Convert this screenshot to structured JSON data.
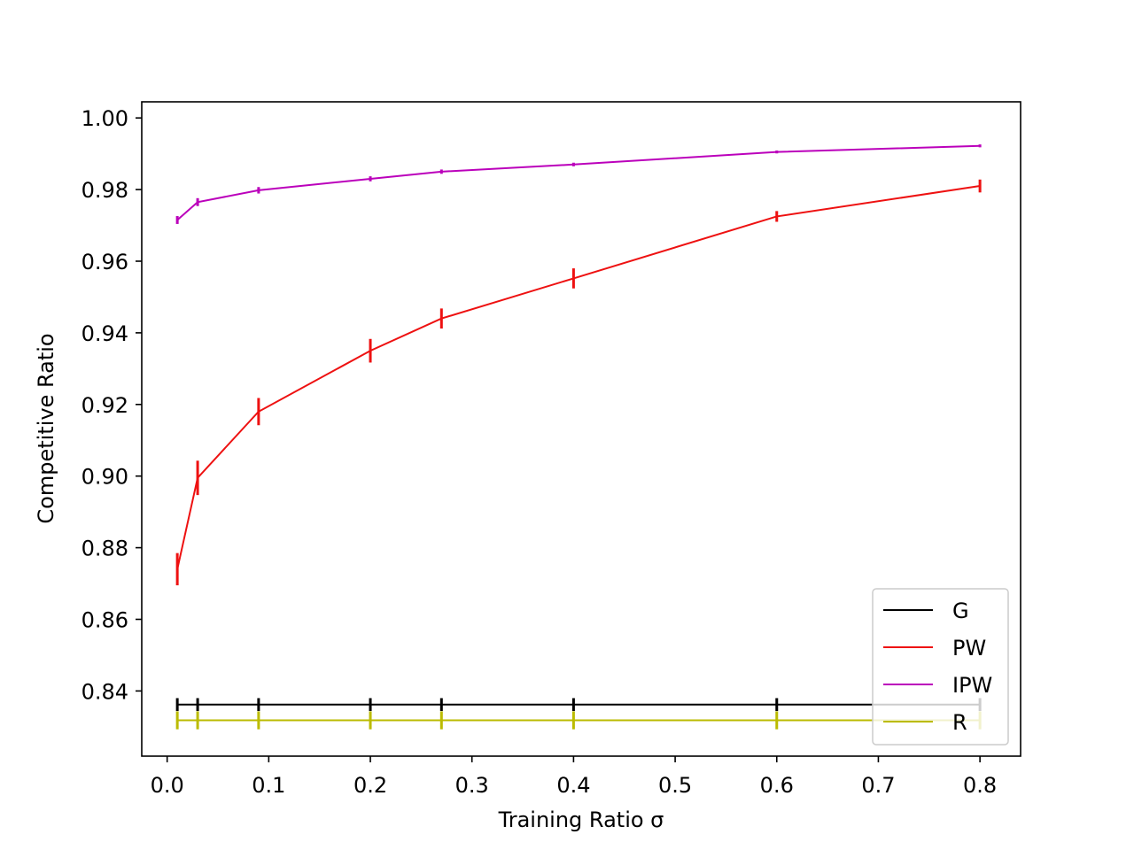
{
  "chart_data": {
    "type": "line",
    "title": "",
    "xlabel": "Training Ratio σ",
    "ylabel": "Competitive Ratio",
    "xlim": [
      -0.025,
      0.84
    ],
    "ylim": [
      0.8218,
      1.0045
    ],
    "xticks": [
      0.0,
      0.1,
      0.2,
      0.3,
      0.4,
      0.5,
      0.6,
      0.7,
      0.8
    ],
    "xtick_labels": [
      "0.0",
      "0.1",
      "0.2",
      "0.3",
      "0.4",
      "0.5",
      "0.6",
      "0.7",
      "0.8"
    ],
    "yticks": [
      0.84,
      0.86,
      0.88,
      0.9,
      0.92,
      0.94,
      0.96,
      0.98,
      1.0
    ],
    "ytick_labels": [
      "0.84",
      "0.86",
      "0.88",
      "0.90",
      "0.92",
      "0.94",
      "0.96",
      "0.98",
      "1.00"
    ],
    "grid": false,
    "legend_position": "bottom-right",
    "x": [
      0.01,
      0.03,
      0.09,
      0.2,
      0.27,
      0.4,
      0.6,
      0.8
    ],
    "series": [
      {
        "name": "G",
        "color": "#000000",
        "values": [
          0.8362,
          0.8362,
          0.8362,
          0.8362,
          0.8362,
          0.8362,
          0.8362,
          0.8362
        ],
        "errors": [
          0.0018,
          0.0018,
          0.0018,
          0.0018,
          0.0018,
          0.0018,
          0.0018,
          0.0018
        ]
      },
      {
        "name": "PW",
        "color": "#ee1111",
        "values": [
          0.874,
          0.8995,
          0.918,
          0.935,
          0.944,
          0.9552,
          0.9725,
          0.981
        ],
        "errors": [
          0.0045,
          0.0048,
          0.0038,
          0.0033,
          0.0028,
          0.0028,
          0.0015,
          0.0018
        ]
      },
      {
        "name": "IPW",
        "color": "#bb00bb",
        "values": [
          0.9715,
          0.9765,
          0.9798,
          0.983,
          0.985,
          0.987,
          0.9905,
          0.9922
        ],
        "errors": [
          0.0011,
          0.0011,
          0.0009,
          0.0007,
          0.0006,
          0.0005,
          0.0004,
          0.0004
        ]
      },
      {
        "name": "R",
        "color": "#bbbb00",
        "values": [
          0.8318,
          0.8318,
          0.8318,
          0.8318,
          0.8318,
          0.8318,
          0.8318,
          0.8318
        ],
        "errors": [
          0.0025,
          0.0025,
          0.0025,
          0.0025,
          0.0025,
          0.0025,
          0.0025,
          0.0025
        ]
      }
    ]
  }
}
